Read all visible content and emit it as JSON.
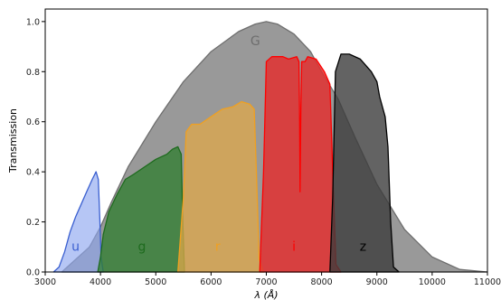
{
  "chart_data": {
    "type": "area",
    "title": "",
    "xlabel": "λ (Å)",
    "ylabel": "Transmission",
    "xlim": [
      3000,
      11000
    ],
    "ylim": [
      0,
      1.05
    ],
    "xticks": [
      3000,
      4000,
      5000,
      6000,
      7000,
      8000,
      9000,
      10000,
      11000
    ],
    "yticks": [
      0.0,
      0.2,
      0.4,
      0.6,
      0.8,
      1.0
    ],
    "grid": false,
    "series": [
      {
        "name": "G",
        "label_pos": [
          6800,
          0.92
        ],
        "fill": "#808080",
        "fill_opacity": 0.8,
        "stroke": "#6e6e6e",
        "points": [
          [
            3300,
            0.0
          ],
          [
            3500,
            0.04
          ],
          [
            3800,
            0.1
          ],
          [
            4000,
            0.18
          ],
          [
            4200,
            0.28
          ],
          [
            4500,
            0.42
          ],
          [
            5000,
            0.6
          ],
          [
            5500,
            0.76
          ],
          [
            6000,
            0.88
          ],
          [
            6500,
            0.96
          ],
          [
            6800,
            0.99
          ],
          [
            7000,
            1.0
          ],
          [
            7200,
            0.99
          ],
          [
            7500,
            0.95
          ],
          [
            7800,
            0.88
          ],
          [
            8000,
            0.8
          ],
          [
            8300,
            0.69
          ],
          [
            8600,
            0.54
          ],
          [
            9000,
            0.35
          ],
          [
            9500,
            0.17
          ],
          [
            10000,
            0.06
          ],
          [
            10500,
            0.01
          ],
          [
            11000,
            0.0
          ]
        ]
      },
      {
        "name": "u",
        "label_pos": [
          3550,
          0.1
        ],
        "fill": "#8fa8f0",
        "fill_opacity": 0.65,
        "stroke": "#3a5fd0",
        "points": [
          [
            3150,
            0.0
          ],
          [
            3250,
            0.02
          ],
          [
            3350,
            0.08
          ],
          [
            3450,
            0.16
          ],
          [
            3550,
            0.22
          ],
          [
            3650,
            0.27
          ],
          [
            3750,
            0.32
          ],
          [
            3850,
            0.37
          ],
          [
            3920,
            0.4
          ],
          [
            3960,
            0.37
          ],
          [
            3990,
            0.2
          ],
          [
            4010,
            0.06
          ],
          [
            4050,
            0.0
          ]
        ]
      },
      {
        "name": "g",
        "label_pos": [
          4750,
          0.1
        ],
        "fill": "#2e7d2e",
        "fill_opacity": 0.75,
        "stroke": "#1e6b1e",
        "points": [
          [
            3950,
            0.0
          ],
          [
            4000,
            0.06
          ],
          [
            4050,
            0.15
          ],
          [
            4150,
            0.24
          ],
          [
            4300,
            0.31
          ],
          [
            4450,
            0.37
          ],
          [
            4600,
            0.39
          ],
          [
            4800,
            0.42
          ],
          [
            5000,
            0.45
          ],
          [
            5200,
            0.47
          ],
          [
            5300,
            0.49
          ],
          [
            5400,
            0.5
          ],
          [
            5460,
            0.47
          ],
          [
            5490,
            0.2
          ],
          [
            5520,
            0.0
          ]
        ]
      },
      {
        "name": "r",
        "label_pos": [
          6120,
          0.1
        ],
        "fill": "#e0a84a",
        "fill_opacity": 0.75,
        "stroke": "#f0a020",
        "points": [
          [
            5400,
            0.0
          ],
          [
            5500,
            0.3
          ],
          [
            5550,
            0.56
          ],
          [
            5650,
            0.59
          ],
          [
            5800,
            0.59
          ],
          [
            6000,
            0.62
          ],
          [
            6200,
            0.65
          ],
          [
            6400,
            0.66
          ],
          [
            6550,
            0.68
          ],
          [
            6700,
            0.67
          ],
          [
            6780,
            0.65
          ],
          [
            6820,
            0.4
          ],
          [
            6870,
            0.05
          ],
          [
            6950,
            0.0
          ]
        ]
      },
      {
        "name": "i",
        "label_pos": [
          7500,
          0.1
        ],
        "fill": "#e23030",
        "fill_opacity": 0.85,
        "stroke": "#ff0000",
        "points": [
          [
            6880,
            0.0
          ],
          [
            6950,
            0.4
          ],
          [
            7000,
            0.84
          ],
          [
            7100,
            0.86
          ],
          [
            7300,
            0.86
          ],
          [
            7400,
            0.85
          ],
          [
            7550,
            0.86
          ],
          [
            7590,
            0.84
          ],
          [
            7600,
            0.66
          ],
          [
            7610,
            0.32
          ],
          [
            7625,
            0.66
          ],
          [
            7640,
            0.84
          ],
          [
            7700,
            0.84
          ],
          [
            7750,
            0.86
          ],
          [
            7900,
            0.85
          ],
          [
            8050,
            0.8
          ],
          [
            8150,
            0.75
          ],
          [
            8200,
            0.4
          ],
          [
            8260,
            0.03
          ],
          [
            8350,
            0.0
          ]
        ]
      },
      {
        "name": "z",
        "label_pos": [
          8750,
          0.1
        ],
        "fill": "#3c3c3c",
        "fill_opacity": 0.8,
        "stroke": "#000000",
        "points": [
          [
            8150,
            0.0
          ],
          [
            8200,
            0.3
          ],
          [
            8250,
            0.8
          ],
          [
            8350,
            0.87
          ],
          [
            8500,
            0.87
          ],
          [
            8700,
            0.85
          ],
          [
            8900,
            0.8
          ],
          [
            9000,
            0.76
          ],
          [
            9050,
            0.7
          ],
          [
            9150,
            0.62
          ],
          [
            9200,
            0.5
          ],
          [
            9250,
            0.2
          ],
          [
            9300,
            0.02
          ],
          [
            9400,
            0.0
          ]
        ]
      }
    ]
  }
}
